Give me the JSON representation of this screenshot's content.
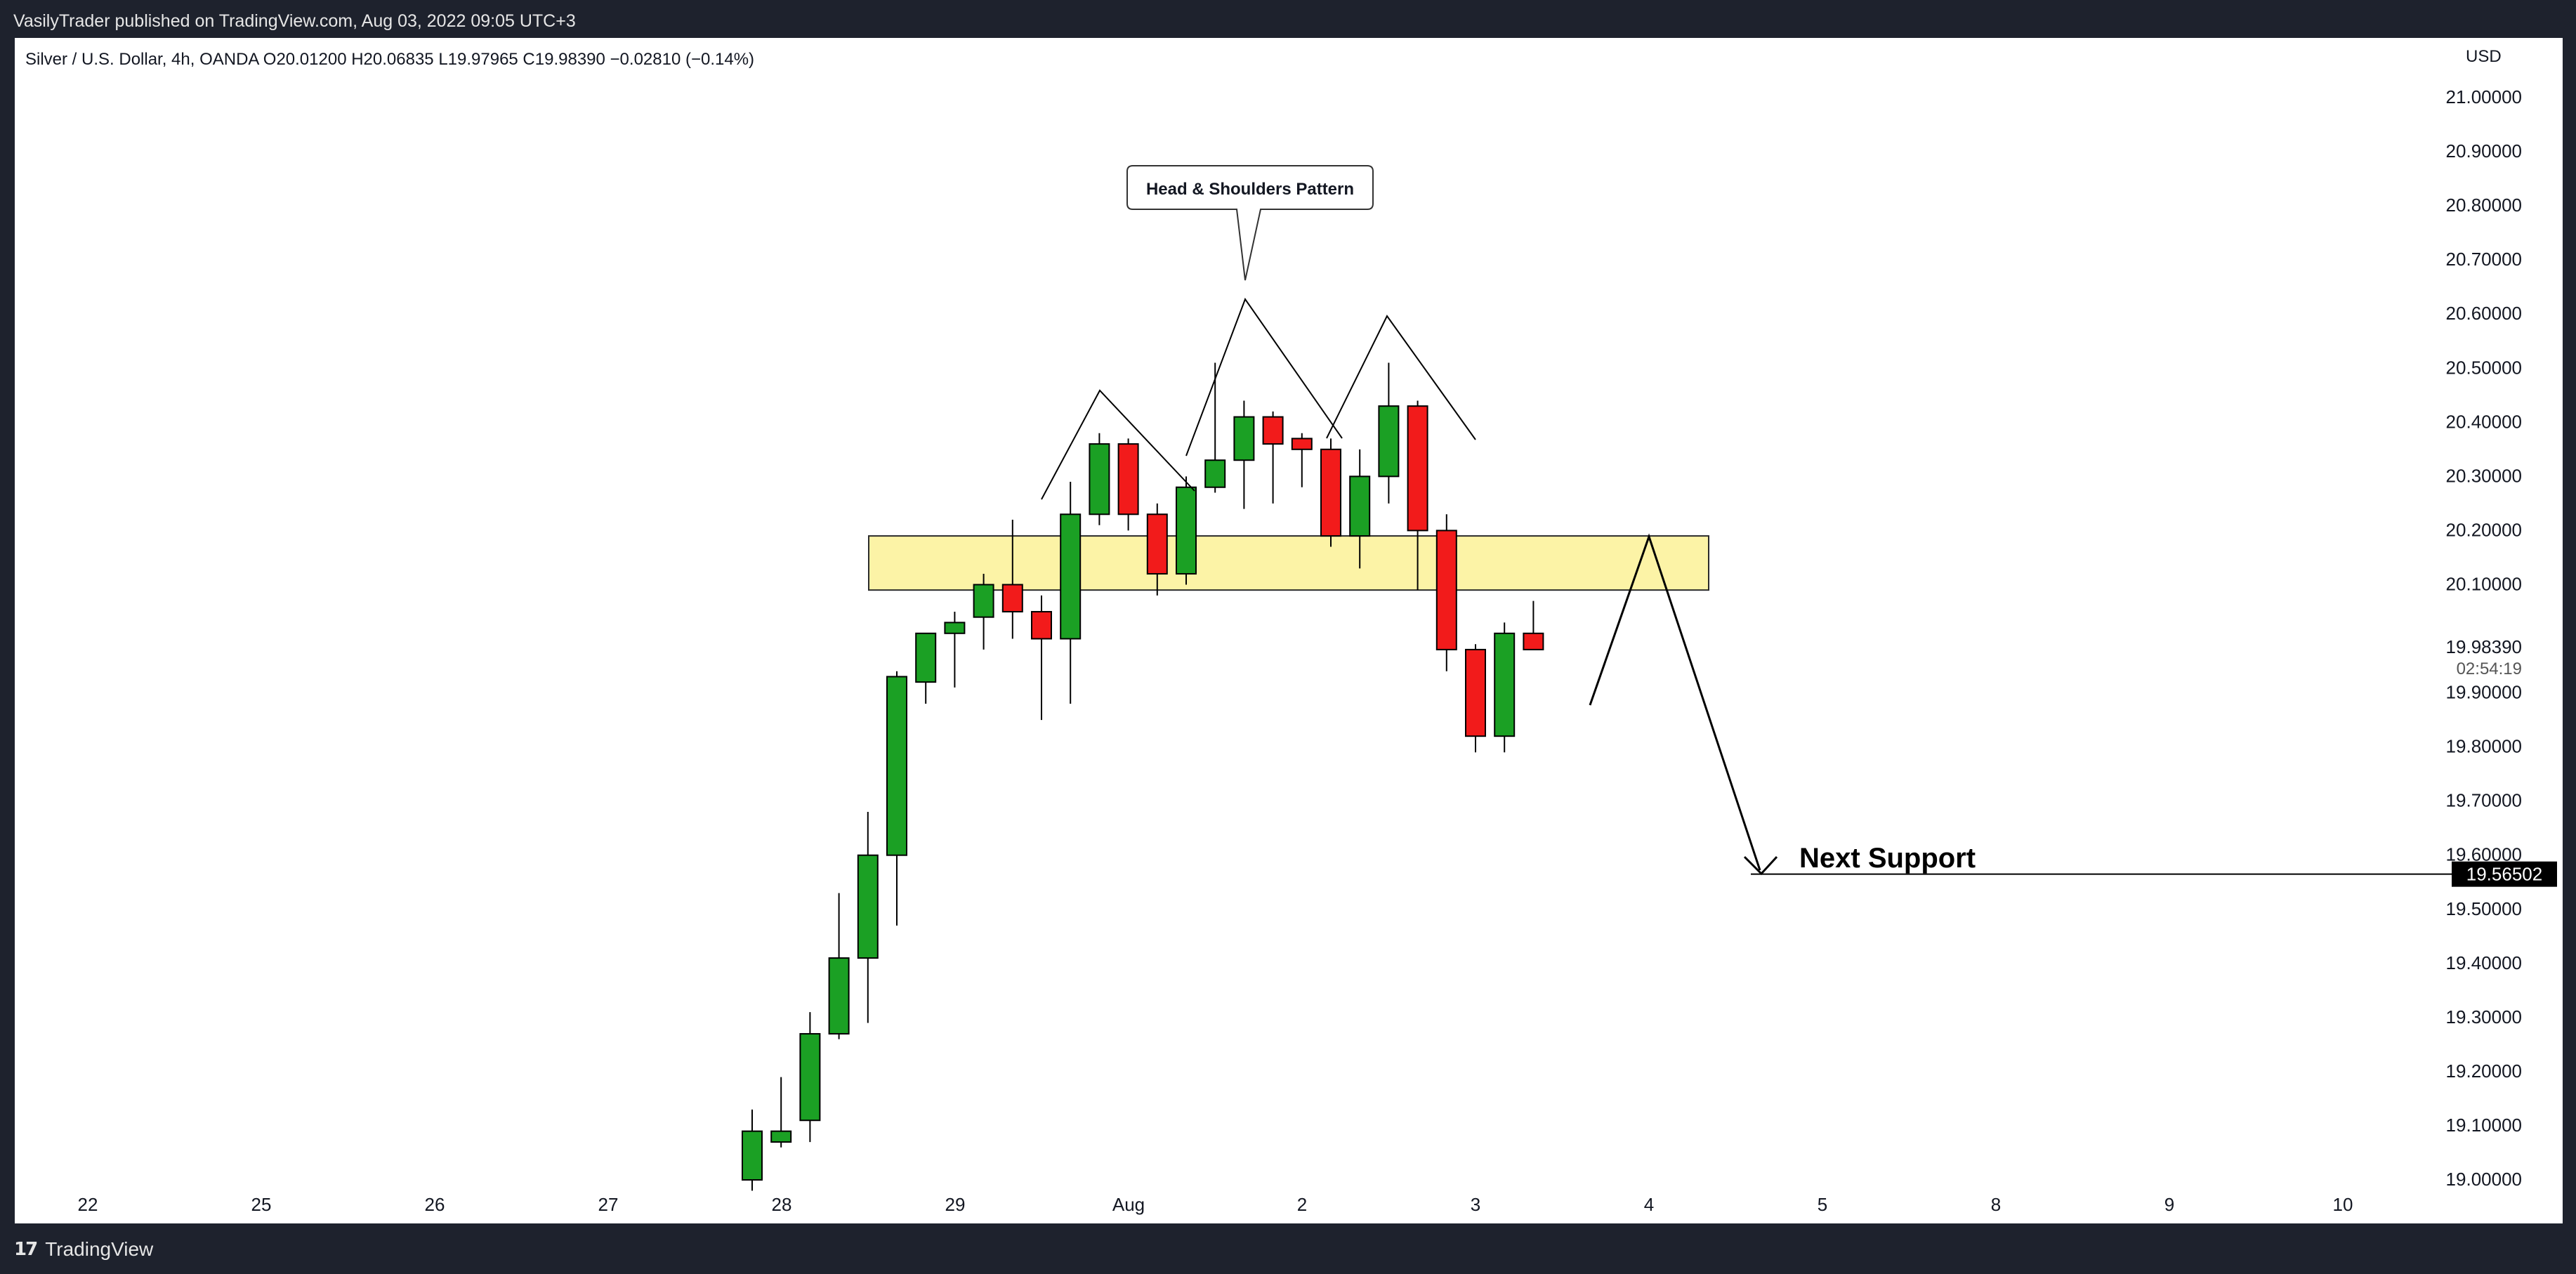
{
  "header": {
    "publisher_line": "VasilyTrader published on TradingView.com, Aug 03, 2022 09:05 UTC+3"
  },
  "footer": {
    "brand": "TradingView",
    "logo_icon": "tradingview-logo-icon"
  },
  "symbol_info": {
    "text": "Silver / U.S. Dollar, 4h, OANDA  O20.01200  H20.06835  L19.97965  C19.98390  −0.02810 (−0.14%)"
  },
  "chart_data": {
    "type": "candlestick",
    "title": "Silver / U.S. Dollar, 4h, OANDA",
    "currency": "USD",
    "ohlc_summary": {
      "open": "20.01200",
      "high": "20.06835",
      "low": "19.97965",
      "close": "19.98390",
      "change": "−0.02810",
      "change_pct": "(−0.14%)"
    },
    "ylim": [
      19.0,
      21.0
    ],
    "y_ticks": [
      "21.00000",
      "20.90000",
      "20.80000",
      "20.70000",
      "20.60000",
      "20.50000",
      "20.40000",
      "20.30000",
      "20.20000",
      "20.10000",
      "19.90000",
      "19.80000",
      "19.70000",
      "19.60000",
      "19.50000",
      "19.40000",
      "19.30000",
      "19.20000",
      "19.10000",
      "19.00000"
    ],
    "x_ticks": [
      "22",
      "25",
      "26",
      "27",
      "28",
      "29",
      "Aug",
      "2",
      "3",
      "4",
      "5",
      "8",
      "9",
      "10"
    ],
    "price_label": {
      "value": "19.98390",
      "countdown": "02:54:19"
    },
    "support_label": {
      "value": "19.56502",
      "text": "Next Support"
    },
    "candles": [
      {
        "o": 19.0,
        "h": 19.13,
        "l": 18.98,
        "c": 19.09
      },
      {
        "o": 19.07,
        "h": 19.19,
        "l": 19.06,
        "c": 19.09
      },
      {
        "o": 19.11,
        "h": 19.31,
        "l": 19.07,
        "c": 19.27
      },
      {
        "o": 19.27,
        "h": 19.53,
        "l": 19.26,
        "c": 19.41
      },
      {
        "o": 19.41,
        "h": 19.68,
        "l": 19.29,
        "c": 19.6
      },
      {
        "o": 19.6,
        "h": 19.94,
        "l": 19.47,
        "c": 19.93
      },
      {
        "o": 19.92,
        "h": 20.01,
        "l": 19.88,
        "c": 20.01
      },
      {
        "o": 20.01,
        "h": 20.05,
        "l": 19.91,
        "c": 20.03
      },
      {
        "o": 20.04,
        "h": 20.12,
        "l": 19.98,
        "c": 20.1
      },
      {
        "o": 20.1,
        "h": 20.22,
        "l": 20.0,
        "c": 20.05
      },
      {
        "o": 20.05,
        "h": 20.08,
        "l": 19.85,
        "c": 20.0
      },
      {
        "o": 20.0,
        "h": 20.29,
        "l": 19.88,
        "c": 20.23
      },
      {
        "o": 20.23,
        "h": 20.38,
        "l": 20.21,
        "c": 20.36
      },
      {
        "o": 20.36,
        "h": 20.37,
        "l": 20.2,
        "c": 20.23
      },
      {
        "o": 20.23,
        "h": 20.25,
        "l": 20.08,
        "c": 20.12
      },
      {
        "o": 20.12,
        "h": 20.3,
        "l": 20.1,
        "c": 20.28
      },
      {
        "o": 20.28,
        "h": 20.51,
        "l": 20.27,
        "c": 20.33
      },
      {
        "o": 20.33,
        "h": 20.44,
        "l": 20.24,
        "c": 20.41
      },
      {
        "o": 20.41,
        "h": 20.42,
        "l": 20.25,
        "c": 20.36
      },
      {
        "o": 20.37,
        "h": 20.38,
        "l": 20.28,
        "c": 20.35
      },
      {
        "o": 20.35,
        "h": 20.37,
        "l": 20.17,
        "c": 20.19
      },
      {
        "o": 20.19,
        "h": 20.35,
        "l": 20.13,
        "c": 20.3
      },
      {
        "o": 20.3,
        "h": 20.51,
        "l": 20.25,
        "c": 20.43
      },
      {
        "o": 20.43,
        "h": 20.44,
        "l": 20.09,
        "c": 20.2
      },
      {
        "o": 20.2,
        "h": 20.23,
        "l": 19.94,
        "c": 19.98
      },
      {
        "o": 19.98,
        "h": 19.99,
        "l": 19.79,
        "c": 19.82
      },
      {
        "o": 19.82,
        "h": 20.03,
        "l": 19.79,
        "c": 20.01
      },
      {
        "o": 20.01,
        "h": 20.07,
        "l": 19.98,
        "c": 19.98
      }
    ],
    "annotations": {
      "callout_text": "Head & Shoulders Pattern",
      "zone": {
        "low": 20.09,
        "high": 20.19
      },
      "support_level": 19.56502
    },
    "colors": {
      "up": "#1ba024",
      "down": "#f21b1b",
      "zone_fill": "#fcf3a6",
      "zone_stroke": "#2b2b2b",
      "support_badge": "#000000"
    }
  }
}
